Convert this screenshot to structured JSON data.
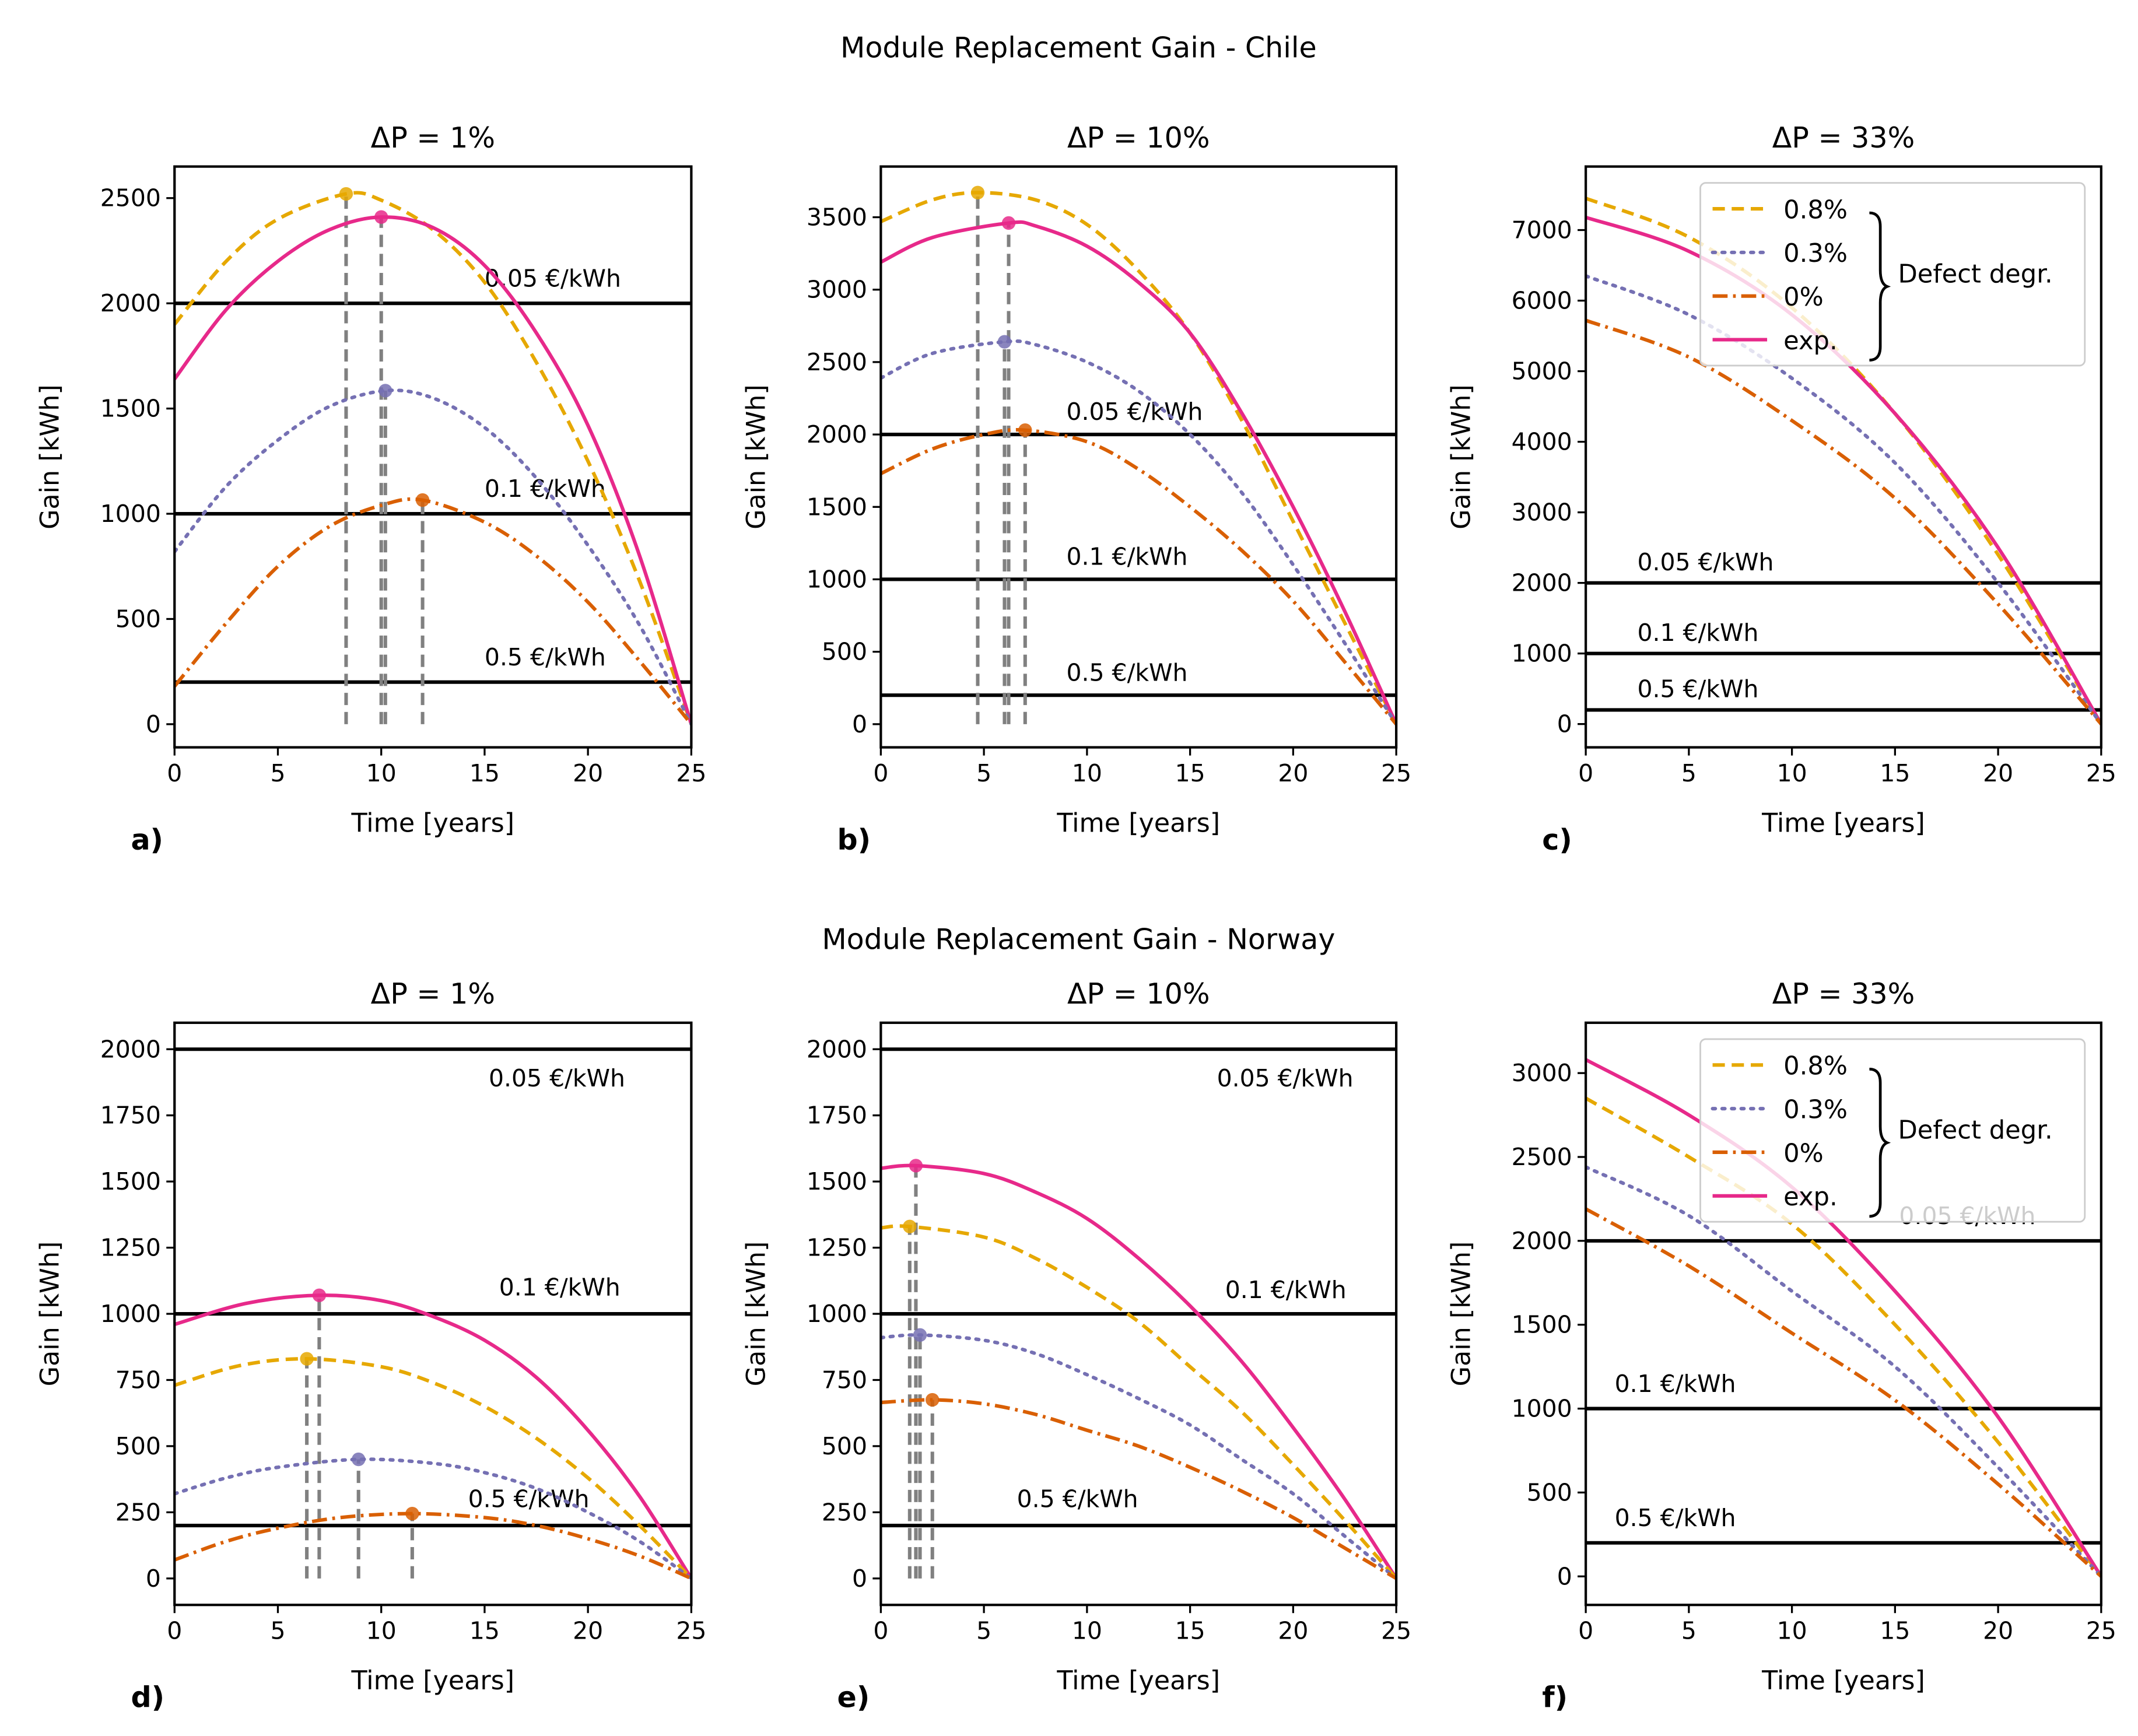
{
  "figure": {
    "supertitles": [
      "Module Replacement Gain - Chile",
      "Module Replacement Gain - Norway"
    ]
  },
  "colors": {
    "0.8%": "#e6a800",
    "0.3%": "#7570b3",
    "0%": "#d95f02",
    "exp.": "#e7298a",
    "threshold": "#000000",
    "maxline": "#808080"
  },
  "legend": {
    "entries": [
      "0.8%",
      "0.3%",
      "0%",
      "exp."
    ],
    "brace_label": "Defect degr.",
    "placement": "upper-right"
  },
  "chart_data": [
    {
      "type": "line",
      "panel": "a)",
      "title": "ΔP = 1%",
      "xlabel": "Time [years]",
      "ylabel": "Gain [kWh]",
      "xlim": [
        0,
        25
      ],
      "ylim": [
        -110,
        2650
      ],
      "xticks": [
        0,
        5,
        10,
        15,
        20,
        25
      ],
      "yticks": [
        0,
        500,
        1000,
        1500,
        2000,
        2500
      ],
      "thresholds": [
        {
          "label": "0.05 €/kWh",
          "y": 2000,
          "label_at": [
            15,
            2080
          ]
        },
        {
          "label": "0.1 €/kWh",
          "y": 1000,
          "label_at": [
            15,
            1080
          ]
        },
        {
          "label": "0.5 €/kWh",
          "y": 200,
          "label_at": [
            15,
            280
          ]
        }
      ],
      "series": [
        {
          "name": "0.8%",
          "x": [
            0,
            2.5,
            5,
            8.3,
            10,
            12.5,
            15,
            17.5,
            20,
            22.5,
            25
          ],
          "y": [
            1900,
            2200,
            2400,
            2520,
            2490,
            2350,
            2100,
            1720,
            1250,
            680,
            0
          ],
          "max": [
            8.3,
            2520
          ]
        },
        {
          "name": "exp.",
          "x": [
            0,
            2.5,
            5,
            7.5,
            10,
            12.5,
            15,
            17.5,
            20,
            22.5,
            25
          ],
          "y": [
            1640,
            1970,
            2200,
            2350,
            2410,
            2360,
            2180,
            1860,
            1420,
            800,
            0
          ],
          "max": [
            10,
            2410
          ]
        },
        {
          "name": "0.3%",
          "x": [
            0,
            2.5,
            5,
            7.5,
            10.2,
            12.5,
            15,
            17.5,
            20,
            22.5,
            25
          ],
          "y": [
            820,
            1130,
            1350,
            1510,
            1585,
            1550,
            1410,
            1170,
            850,
            470,
            0
          ],
          "max": [
            10.2,
            1585
          ]
        },
        {
          "name": "0%",
          "x": [
            0,
            2.5,
            5,
            7.5,
            10,
            12,
            15,
            17.5,
            20,
            22.5,
            25
          ],
          "y": [
            180,
            480,
            750,
            940,
            1040,
            1065,
            960,
            800,
            580,
            300,
            0
          ],
          "max": [
            12,
            1065
          ]
        }
      ],
      "legend": false
    },
    {
      "type": "line",
      "panel": "b)",
      "title": "ΔP = 10%",
      "xlabel": "Time [years]",
      "ylabel": "Gain [kWh]",
      "xlim": [
        0,
        25
      ],
      "ylim": [
        -160,
        3850
      ],
      "xticks": [
        0,
        5,
        10,
        15,
        20,
        25
      ],
      "yticks": [
        0,
        500,
        1000,
        1500,
        2000,
        2500,
        3000,
        3500
      ],
      "thresholds": [
        {
          "label": "0.05 €/kWh",
          "y": 2000,
          "label_at": [
            9,
            2100
          ]
        },
        {
          "label": "0.1 €/kWh",
          "y": 1000,
          "label_at": [
            9,
            1100
          ]
        },
        {
          "label": "0.5 €/kWh",
          "y": 200,
          "label_at": [
            9,
            300
          ]
        }
      ],
      "series": [
        {
          "name": "0.8%",
          "x": [
            0,
            2.5,
            4.7,
            7.5,
            10,
            12.5,
            15,
            17.5,
            20,
            22.5,
            25
          ],
          "y": [
            3470,
            3620,
            3670,
            3620,
            3450,
            3130,
            2700,
            2100,
            1400,
            700,
            0
          ],
          "max": [
            4.7,
            3670
          ]
        },
        {
          "name": "exp.",
          "x": [
            0,
            2.5,
            6.2,
            7.5,
            10,
            12.5,
            15,
            17.5,
            20,
            22.5,
            25
          ],
          "y": [
            3190,
            3360,
            3460,
            3440,
            3300,
            3050,
            2700,
            2150,
            1500,
            780,
            0
          ],
          "max": [
            6.2,
            3460
          ]
        },
        {
          "name": "0.3%",
          "x": [
            0,
            2.5,
            6,
            7.5,
            10,
            12.5,
            15,
            17.5,
            20,
            22.5,
            25
          ],
          "y": [
            2390,
            2560,
            2640,
            2620,
            2500,
            2300,
            2000,
            1600,
            1100,
            560,
            0
          ],
          "max": [
            6,
            2640
          ]
        },
        {
          "name": "0%",
          "x": [
            0,
            2.5,
            5,
            7,
            10,
            12.5,
            15,
            17.5,
            20,
            22.5,
            25
          ],
          "y": [
            1730,
            1900,
            2000,
            2030,
            1950,
            1760,
            1500,
            1200,
            850,
            430,
            0
          ],
          "max": [
            7,
            2030
          ]
        }
      ],
      "legend": false
    },
    {
      "type": "line",
      "panel": "c)",
      "title": "ΔP = 33%",
      "xlabel": "Time [years]",
      "ylabel": "Gain [kWh]",
      "xlim": [
        0,
        25
      ],
      "ylim": [
        -330,
        7900
      ],
      "xticks": [
        0,
        5,
        10,
        15,
        20,
        25
      ],
      "yticks": [
        0,
        1000,
        2000,
        3000,
        4000,
        5000,
        6000,
        7000
      ],
      "thresholds": [
        {
          "label": "0.05 €/kWh",
          "y": 2000,
          "label_at": [
            2.5,
            2180
          ]
        },
        {
          "label": "0.1 €/kWh",
          "y": 1000,
          "label_at": [
            2.5,
            1180
          ]
        },
        {
          "label": "0.5 €/kWh",
          "y": 200,
          "label_at": [
            2.5,
            380
          ]
        }
      ],
      "series": [
        {
          "name": "0.8%",
          "x": [
            0,
            5,
            10,
            15,
            20,
            25
          ],
          "y": [
            7450,
            6900,
            5900,
            4400,
            2400,
            0
          ]
        },
        {
          "name": "exp.",
          "x": [
            0,
            5,
            10,
            15,
            20,
            25
          ],
          "y": [
            7180,
            6700,
            5800,
            4400,
            2500,
            0
          ]
        },
        {
          "name": "0.3%",
          "x": [
            0,
            5,
            10,
            15,
            20,
            25
          ],
          "y": [
            6350,
            5800,
            4900,
            3700,
            2000,
            0
          ]
        },
        {
          "name": "0%",
          "x": [
            0,
            5,
            10,
            15,
            20,
            25
          ],
          "y": [
            5720,
            5200,
            4300,
            3200,
            1700,
            0
          ]
        }
      ],
      "legend": true
    },
    {
      "type": "line",
      "panel": "d)",
      "title": "ΔP = 1%",
      "xlabel": "Time [years]",
      "ylabel": "Gain [kWh]",
      "xlim": [
        0,
        25
      ],
      "ylim": [
        -100,
        2100
      ],
      "xticks": [
        0,
        5,
        10,
        15,
        20,
        25
      ],
      "yticks": [
        0,
        250,
        500,
        750,
        1000,
        1250,
        1500,
        1750,
        2000
      ],
      "thresholds": [
        {
          "label": "0.05 €/kWh",
          "y": 2000,
          "label_at": [
            15.2,
            1860
          ]
        },
        {
          "label": "0.1 €/kWh",
          "y": 1000,
          "label_at": [
            15.7,
            1070
          ]
        },
        {
          "label": "0.5 €/kWh",
          "y": 200,
          "label_at": [
            14.2,
            270
          ]
        }
      ],
      "series": [
        {
          "name": "exp.",
          "x": [
            0,
            3.5,
            7,
            10,
            12.5,
            15,
            17.5,
            20,
            22.5,
            25
          ],
          "y": [
            960,
            1040,
            1070,
            1050,
            990,
            900,
            760,
            560,
            310,
            0
          ],
          "max": [
            7,
            1070
          ]
        },
        {
          "name": "0.8%",
          "x": [
            0,
            3.2,
            6.4,
            10,
            12.5,
            15,
            17.5,
            20,
            22.5,
            25
          ],
          "y": [
            730,
            805,
            830,
            800,
            740,
            650,
            530,
            380,
            200,
            0
          ],
          "max": [
            6.4,
            830
          ]
        },
        {
          "name": "0.3%",
          "x": [
            0,
            2.5,
            5,
            8.9,
            12.5,
            15,
            17.5,
            20,
            22.5,
            25
          ],
          "y": [
            320,
            380,
            420,
            450,
            435,
            400,
            340,
            250,
            140,
            0
          ],
          "max": [
            8.9,
            450
          ]
        },
        {
          "name": "0%",
          "x": [
            0,
            2.5,
            5,
            8,
            11.5,
            15,
            17.5,
            20,
            22.5,
            25
          ],
          "y": [
            70,
            140,
            190,
            230,
            245,
            230,
            200,
            150,
            85,
            0
          ],
          "max": [
            11.5,
            245
          ]
        }
      ],
      "legend": false
    },
    {
      "type": "line",
      "panel": "e)",
      "title": "ΔP = 10%",
      "xlabel": "Time [years]",
      "ylabel": "Gain [kWh]",
      "xlim": [
        0,
        25
      ],
      "ylim": [
        -100,
        2100
      ],
      "xticks": [
        0,
        5,
        10,
        15,
        20,
        25
      ],
      "yticks": [
        0,
        250,
        500,
        750,
        1000,
        1250,
        1500,
        1750,
        2000
      ],
      "thresholds": [
        {
          "label": "0.05 €/kWh",
          "y": 2000,
          "label_at": [
            16.3,
            1860
          ]
        },
        {
          "label": "0.1 €/kWh",
          "y": 1000,
          "label_at": [
            16.7,
            1060
          ]
        },
        {
          "label": "0.5 €/kWh",
          "y": 200,
          "label_at": [
            6.6,
            270
          ]
        }
      ],
      "series": [
        {
          "name": "exp.",
          "x": [
            0,
            1.7,
            5,
            7.5,
            10,
            12.5,
            15,
            17.5,
            20,
            22.5,
            25
          ],
          "y": [
            1550,
            1560,
            1530,
            1460,
            1360,
            1210,
            1030,
            820,
            570,
            300,
            0
          ],
          "max": [
            1.7,
            1560
          ]
        },
        {
          "name": "0.8%",
          "x": [
            0,
            1.4,
            5,
            7.5,
            10,
            12.5,
            15,
            17.5,
            20,
            22.5,
            25
          ],
          "y": [
            1325,
            1330,
            1290,
            1210,
            1100,
            970,
            800,
            630,
            430,
            220,
            0
          ],
          "max": [
            1.4,
            1330
          ]
        },
        {
          "name": "0.3%",
          "x": [
            0,
            1.9,
            5,
            7.5,
            10,
            12.5,
            15,
            17.5,
            20,
            22.5,
            25
          ],
          "y": [
            910,
            920,
            900,
            850,
            770,
            680,
            580,
            450,
            320,
            160,
            0
          ],
          "max": [
            1.9,
            920
          ]
        },
        {
          "name": "0%",
          "x": [
            0,
            2.5,
            5,
            7.5,
            10,
            12.5,
            15,
            17.5,
            20,
            22.5,
            25
          ],
          "y": [
            665,
            675,
            660,
            620,
            560,
            500,
            420,
            330,
            230,
            115,
            0
          ],
          "max": [
            2.5,
            675
          ]
        }
      ],
      "legend": false
    },
    {
      "type": "line",
      "panel": "f)",
      "title": "ΔP = 33%",
      "xlabel": "Time [years]",
      "ylabel": "Gain [kWh]",
      "xlim": [
        0,
        25
      ],
      "ylim": [
        -170,
        3300
      ],
      "xticks": [
        0,
        5,
        10,
        15,
        20,
        25
      ],
      "yticks": [
        0,
        500,
        1000,
        1500,
        2000,
        2500,
        3000
      ],
      "thresholds": [
        {
          "label": "0.05 €/kWh",
          "y": 2000,
          "label_at": [
            15.2,
            2100
          ]
        },
        {
          "label": "0.1 €/kWh",
          "y": 1000,
          "label_at": [
            1.4,
            1100
          ]
        },
        {
          "label": "0.5 €/kWh",
          "y": 200,
          "label_at": [
            1.4,
            300
          ]
        }
      ],
      "series": [
        {
          "name": "0.8%",
          "x": [
            0,
            5,
            10,
            15,
            20,
            25
          ],
          "y": [
            2850,
            2500,
            2100,
            1500,
            800,
            0
          ]
        },
        {
          "name": "exp.",
          "x": [
            0,
            5,
            10,
            15,
            20,
            25
          ],
          "y": [
            3080,
            2750,
            2320,
            1700,
            950,
            0
          ]
        },
        {
          "name": "0.3%",
          "x": [
            0,
            5,
            10,
            15,
            20,
            25
          ],
          "y": [
            2440,
            2150,
            1700,
            1250,
            650,
            0
          ]
        },
        {
          "name": "0%",
          "x": [
            0,
            5,
            10,
            15,
            20,
            25
          ],
          "y": [
            2190,
            1850,
            1450,
            1050,
            550,
            0
          ]
        }
      ],
      "legend": true
    }
  ]
}
